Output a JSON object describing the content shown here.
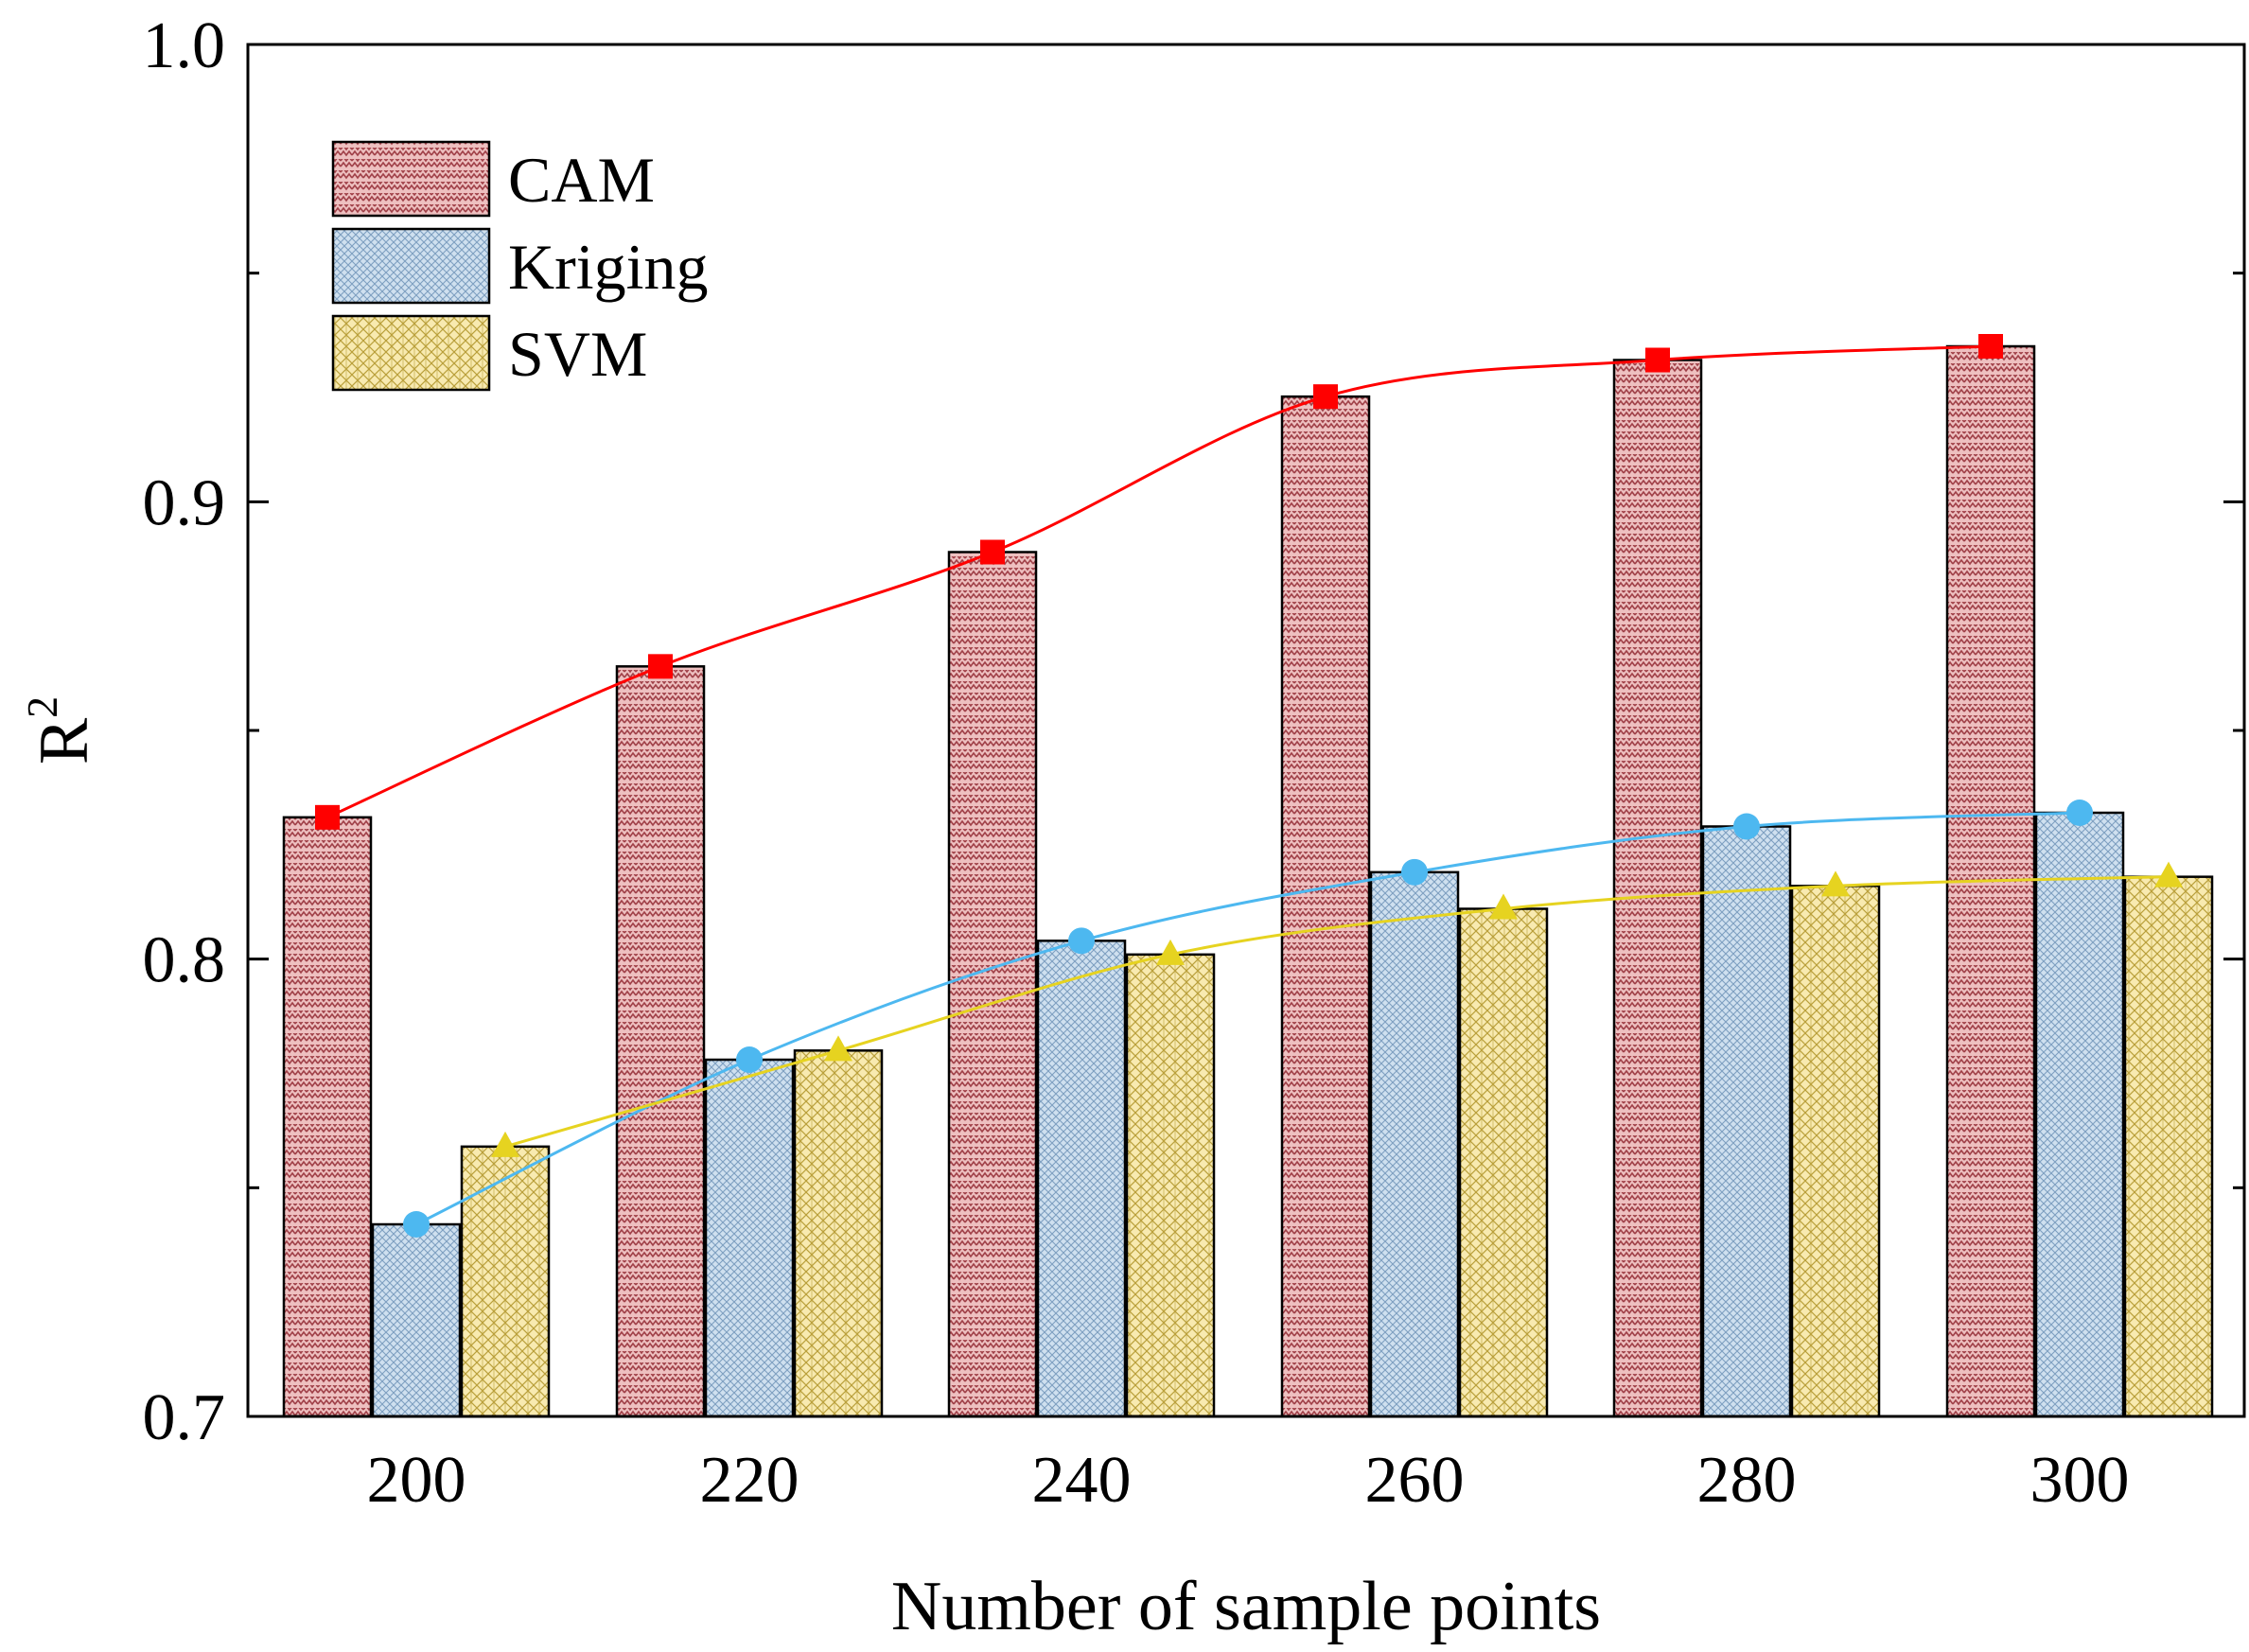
{
  "chart_data": {
    "type": "bar",
    "title": "",
    "xlabel": "Number of sample points",
    "ylabel_base": "R",
    "ylabel_sup": "2",
    "categories": [
      "200",
      "220",
      "240",
      "260",
      "280",
      "300"
    ],
    "ylim": [
      0.7,
      1.0
    ],
    "yticks_major": [
      0.7,
      0.8,
      0.9,
      1.0
    ],
    "ytick_labels": [
      "0.7",
      "0.8",
      "0.9",
      "1.0"
    ],
    "yticks_minor": [
      0.75,
      0.85,
      0.95
    ],
    "grid": false,
    "legend_position": "top-left",
    "series": [
      {
        "name": "CAM",
        "values": [
          0.831,
          0.864,
          0.889,
          0.923,
          0.931,
          0.934
        ],
        "color": "#b5565e",
        "fill": "#e8b7b7",
        "line_color": "#ff0000",
        "marker": "square"
      },
      {
        "name": "Kriging",
        "values": [
          0.742,
          0.778,
          0.804,
          0.819,
          0.829,
          0.832
        ],
        "color": "#7fa6c8",
        "fill": "#c7d9ea",
        "line_color": "#4db8f0",
        "marker": "circle"
      },
      {
        "name": "SVM",
        "values": [
          0.759,
          0.78,
          0.801,
          0.811,
          0.816,
          0.818
        ],
        "color": "#c9b04a",
        "fill": "#f4e7a8",
        "line_color": "#e6d320",
        "marker": "triangle"
      }
    ],
    "notes": "Grouped bars with overlaid smoothed trend lines and markers at bar tops."
  }
}
